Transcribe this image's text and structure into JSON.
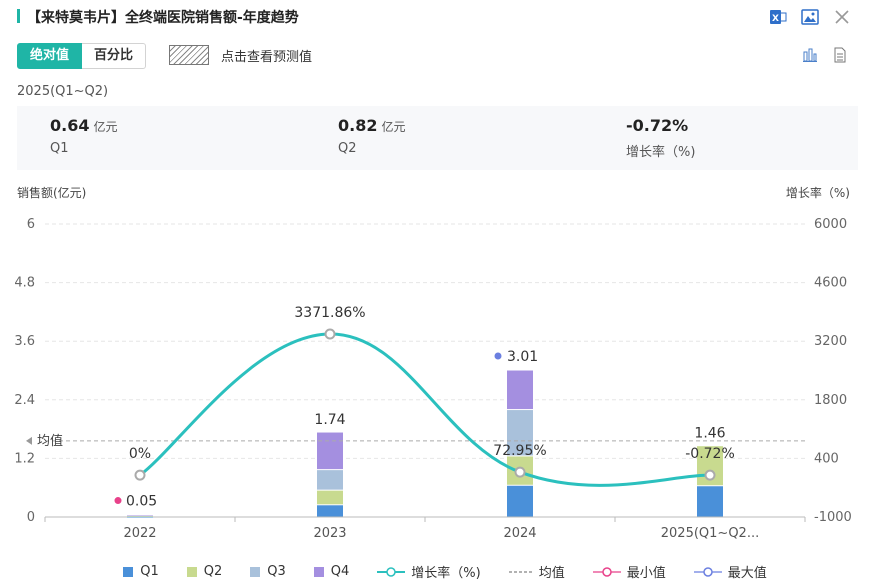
{
  "title": "【来特莫韦片】全终端医院销售额-年度趋势",
  "toggle": {
    "absolute": "绝对值",
    "percent": "百分比"
  },
  "forecast_label": "点击查看预测值",
  "period": "2025(Q1~Q2)",
  "stats": [
    {
      "value": "0.64",
      "unit": "亿元",
      "label": "Q1"
    },
    {
      "value": "0.82",
      "unit": "亿元",
      "label": "Q2"
    },
    {
      "value": "-0.72%",
      "unit": "",
      "label": "增长率（%)"
    }
  ],
  "colors": {
    "accent": "#1fb5a6",
    "q1": "#4a90d9",
    "q2": "#c8da8f",
    "q3": "#a9c1db",
    "q4": "#a48fe0",
    "line": "#2bc0be",
    "min": "#e8418a",
    "max": "#6b7fe0"
  },
  "chart_data": {
    "type": "bar",
    "stacked": true,
    "ylabel": "销售额(亿元)",
    "y2label": "增长率（%)",
    "ylim": [
      0,
      6
    ],
    "y2lim": [
      -1000,
      6000
    ],
    "y_ticks": [
      "0",
      "1.2",
      "2.4",
      "3.6",
      "4.8",
      "6"
    ],
    "y2_ticks": [
      "-1000",
      "400",
      "1800",
      "3200",
      "4600",
      "6000"
    ],
    "categories": [
      "2022",
      "2023",
      "2024",
      "2025(Q1~Q2..."
    ],
    "series": [
      {
        "name": "Q1",
        "values": [
          0.01,
          0.25,
          0.65,
          0.64
        ]
      },
      {
        "name": "Q2",
        "values": [
          0.01,
          0.3,
          0.6,
          0.82
        ]
      },
      {
        "name": "Q3",
        "values": [
          0.01,
          0.42,
          0.95,
          0
        ]
      },
      {
        "name": "Q4",
        "values": [
          0.02,
          0.77,
          0.81,
          0
        ]
      }
    ],
    "totals": [
      "0.05",
      "1.74",
      "3.01",
      "1.46"
    ],
    "growth": {
      "name": "增长率（%)",
      "values": [
        0,
        3371.86,
        72.95,
        -0.72
      ],
      "labels": [
        "0%",
        "3371.86%",
        "72.95%",
        "-0.72%"
      ]
    },
    "average": {
      "label": "均值",
      "value": 1.56
    },
    "min_label": "0.05",
    "max_label": "3.01",
    "legend": [
      "Q1",
      "Q2",
      "Q3",
      "Q4",
      "增长率（%)",
      "均值",
      "最小值",
      "最大值"
    ]
  }
}
